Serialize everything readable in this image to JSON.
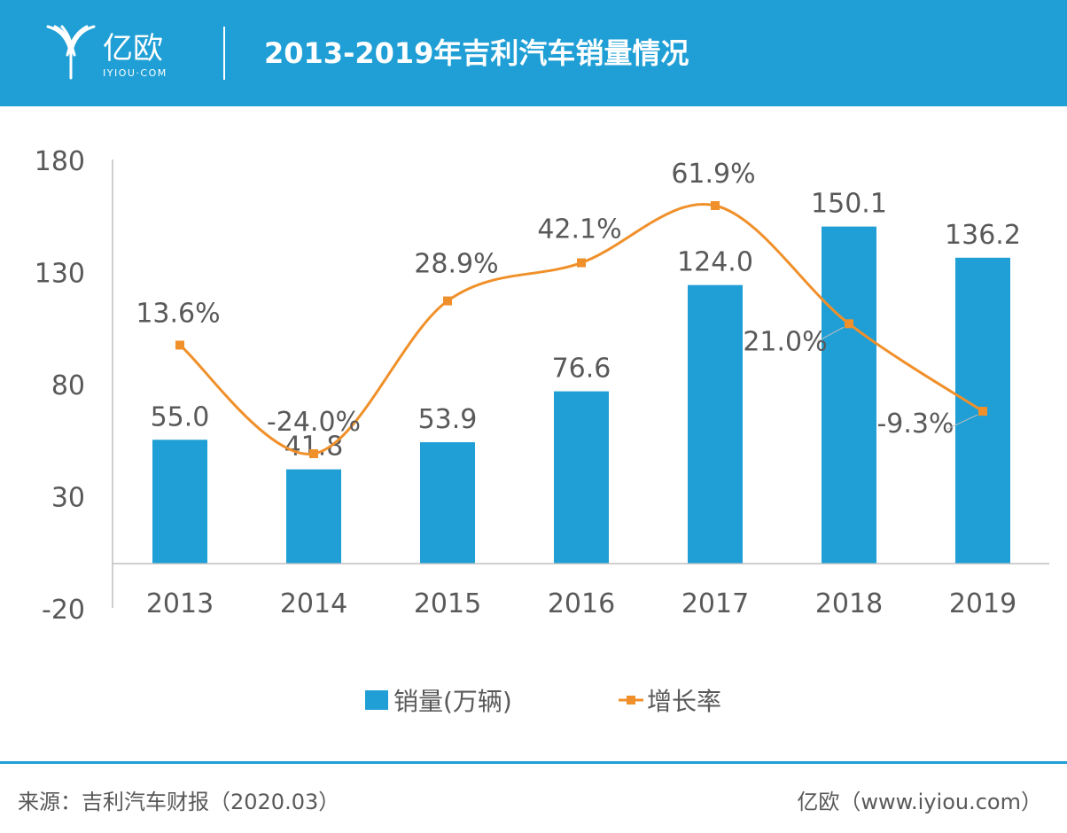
{
  "header": {
    "logo_cn": "亿欧",
    "logo_en": "IYIOU·COM",
    "title": "2013-2019年吉利汽车销量情况"
  },
  "colors": {
    "header_bg": "#1f9fd5",
    "bar": "#1f9fd5",
    "line": "#f0902a",
    "text": "#595959",
    "axis": "#bfbfbf"
  },
  "chart_data": {
    "type": "bar",
    "categories": [
      "2013",
      "2014",
      "2015",
      "2016",
      "2017",
      "2018",
      "2019"
    ],
    "ylim": [
      -20,
      180
    ],
    "yticks": [
      "180",
      "130",
      "80",
      "30",
      "-20"
    ],
    "series": [
      {
        "name": "销量(万辆)",
        "type": "bar",
        "values": [
          55.0,
          41.8,
          53.9,
          76.6,
          124.0,
          150.1,
          136.2
        ],
        "labels": [
          "55.0",
          "41.8",
          "53.9",
          "76.6",
          "124.0",
          "150.1",
          "136.2"
        ]
      },
      {
        "name": "增长率",
        "type": "line",
        "values": [
          13.6,
          -24.0,
          28.9,
          42.1,
          61.9,
          21.0,
          -9.3
        ],
        "labels": [
          "13.6%",
          "-24.0%",
          "28.9%",
          "42.1%",
          "61.9%",
          "21.0%",
          "-9.3%"
        ]
      }
    ],
    "legend_position": "bottom"
  },
  "footer": {
    "source": "来源：吉利汽车财报（2020.03）",
    "site": "亿欧（www.iyiou.com）"
  }
}
